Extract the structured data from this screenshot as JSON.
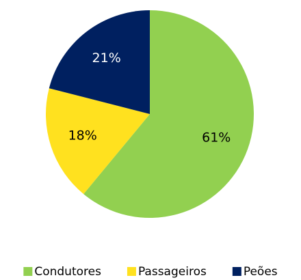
{
  "chart_data": {
    "type": "pie",
    "categories": [
      "Condutores",
      "Passageiros",
      "Peões"
    ],
    "values": [
      61,
      18,
      21
    ],
    "value_labels": [
      "61%",
      "18%",
      "21%"
    ],
    "colors": [
      "#92d050",
      "#ffe11f",
      "#002060"
    ],
    "label_colors": [
      "#000000",
      "#000000",
      "#ffffff"
    ],
    "legend": "bottom"
  }
}
